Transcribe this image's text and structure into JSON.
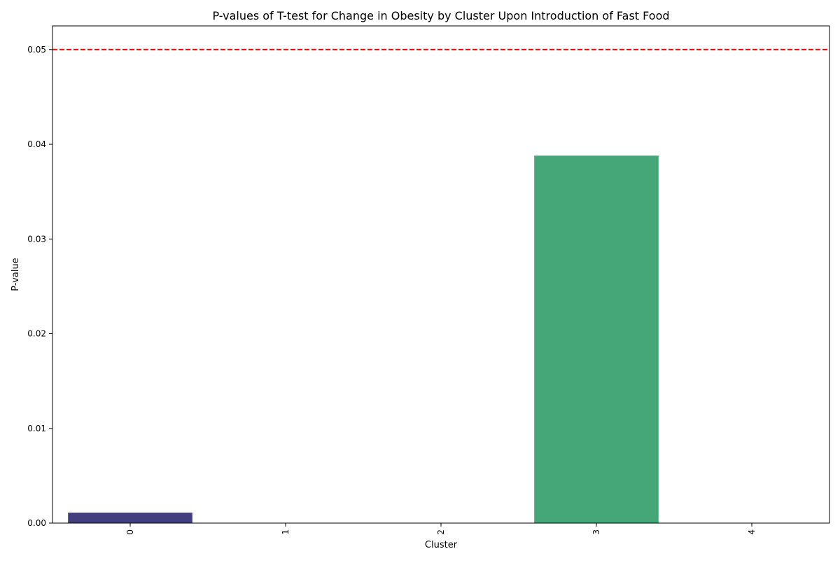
{
  "chart_data": {
    "type": "bar",
    "title": "P-values of T-test for Change in Obesity by Cluster Upon Introduction of Fast Food",
    "xlabel": "Cluster",
    "ylabel": "P-value",
    "categories": [
      "0",
      "1",
      "2",
      "3",
      "4"
    ],
    "values": [
      0.0011,
      0.0,
      0.0,
      0.0388,
      0.0
    ],
    "colors": [
      "#433e7e",
      "#31688e",
      "#21918c",
      "#45a778",
      "#7ad151"
    ],
    "ylim": [
      0,
      0.0525
    ],
    "yticks": [
      0.0,
      0.01,
      0.02,
      0.03,
      0.04,
      0.05
    ],
    "ytick_labels": [
      "0.00",
      "0.01",
      "0.02",
      "0.03",
      "0.04",
      "0.05"
    ],
    "xtick_rotation": 90,
    "reference_line": {
      "y": 0.05,
      "color": "#ff0000",
      "style": "dashed"
    },
    "grid": false,
    "legend": "none"
  }
}
